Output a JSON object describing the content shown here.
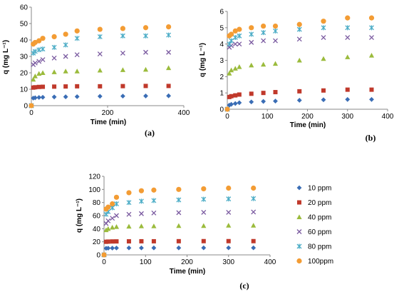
{
  "legend": [
    "10 ppm",
    "20 ppm",
    "40 ppm",
    "60 ppm",
    "80 ppm",
    "100ppm"
  ],
  "colors": [
    "#3a6db5",
    "#c0392b",
    "#9bbb3c",
    "#7a5aa0",
    "#4bacc6",
    "#f39c34"
  ],
  "markers": [
    "diamond",
    "square",
    "triangle",
    "x",
    "asterisk",
    "circle"
  ],
  "chart_data": [
    {
      "type": "scatter",
      "panel_label": "(a)",
      "xlabel": "Time (min)",
      "ylabel": "q (mg L⁻¹)",
      "xlim": [
        0,
        400
      ],
      "ylim": [
        0,
        60
      ],
      "xticks": [
        "0",
        "200",
        "400"
      ],
      "yticks": [
        "0",
        "10",
        "20",
        "30",
        "40",
        "50",
        "60"
      ],
      "x": [
        0,
        5,
        10,
        20,
        30,
        60,
        90,
        120,
        180,
        240,
        300,
        360
      ],
      "series": [
        {
          "name": "10 ppm",
          "values": [
            0,
            4.6,
            4.8,
            5.0,
            5.1,
            5.3,
            5.4,
            5.5,
            5.7,
            5.8,
            5.9,
            6.0
          ]
        },
        {
          "name": "20 ppm",
          "values": [
            0,
            11,
            11.2,
            11.4,
            11.5,
            11.6,
            11.7,
            11.8,
            11.8,
            11.9,
            12.0,
            12.0
          ]
        },
        {
          "name": "40 ppm",
          "values": [
            0,
            16,
            18,
            19.5,
            20,
            20.5,
            21,
            21,
            21.5,
            21.8,
            22,
            23
          ]
        },
        {
          "name": "60 ppm",
          "values": [
            0,
            25,
            26,
            27,
            28,
            29,
            30,
            31,
            31.5,
            32,
            32.5,
            32.5
          ]
        },
        {
          "name": "80 ppm",
          "values": [
            0,
            32,
            33,
            34,
            34.5,
            35.5,
            37,
            41,
            42,
            42.5,
            42.5,
            43
          ]
        },
        {
          "name": "100ppm",
          "values": [
            0,
            37.5,
            38.5,
            39.5,
            41,
            42,
            43.5,
            45.5,
            46.5,
            47,
            47.5,
            48
          ]
        }
      ]
    },
    {
      "type": "scatter",
      "panel_label": "(b)",
      "xlabel": "Time (min)",
      "ylabel": "q (mg L⁻¹)",
      "xlim": [
        0,
        400
      ],
      "ylim": [
        0,
        6
      ],
      "xticks": [
        "0",
        "100",
        "200",
        "300",
        "400"
      ],
      "yticks": [
        "0",
        "1",
        "2",
        "3",
        "4",
        "5",
        "6"
      ],
      "x": [
        0,
        5,
        10,
        20,
        30,
        60,
        90,
        120,
        180,
        240,
        300,
        360
      ],
      "series": [
        {
          "name": "10 ppm",
          "values": [
            0,
            0.25,
            0.3,
            0.35,
            0.4,
            0.45,
            0.48,
            0.5,
            0.55,
            0.58,
            0.6,
            0.6
          ]
        },
        {
          "name": "20 ppm",
          "values": [
            0,
            0.75,
            0.8,
            0.85,
            0.9,
            0.95,
            1.0,
            1.05,
            1.1,
            1.15,
            1.2,
            1.2
          ]
        },
        {
          "name": "40 ppm",
          "values": [
            0,
            2.2,
            2.4,
            2.5,
            2.6,
            2.7,
            2.75,
            2.8,
            3.0,
            3.1,
            3.2,
            3.3
          ]
        },
        {
          "name": "60 ppm",
          "values": [
            0,
            3.8,
            3.9,
            4.0,
            4.0,
            4.1,
            4.2,
            4.2,
            4.3,
            4.4,
            4.4,
            4.4
          ]
        },
        {
          "name": "80 ppm",
          "values": [
            0,
            4.0,
            4.2,
            4.4,
            4.5,
            4.6,
            4.7,
            4.8,
            4.9,
            5.0,
            5.0,
            5.0
          ]
        },
        {
          "name": "100ppm",
          "values": [
            0,
            4.5,
            4.6,
            4.8,
            4.9,
            5.0,
            5.1,
            5.1,
            5.2,
            5.4,
            5.6,
            5.6
          ]
        }
      ]
    },
    {
      "type": "scatter",
      "panel_label": "(c)",
      "xlabel": "Time (min)",
      "ylabel": "q (mg L⁻¹)",
      "xlim": [
        0,
        400
      ],
      "ylim": [
        0,
        120
      ],
      "xticks": [
        "0",
        "100",
        "200",
        "300",
        "400"
      ],
      "yticks": [
        "0",
        "20",
        "40",
        "60",
        "80",
        "100",
        "120"
      ],
      "x": [
        0,
        5,
        10,
        20,
        30,
        60,
        90,
        120,
        180,
        240,
        300,
        360
      ],
      "series": [
        {
          "name": "10 ppm",
          "values": [
            0,
            10,
            10.2,
            10.4,
            10.5,
            10.6,
            10.6,
            10.7,
            10.7,
            10.8,
            10.8,
            10.8
          ]
        },
        {
          "name": "20 ppm",
          "values": [
            0,
            20,
            20.3,
            20.5,
            20.6,
            20.7,
            20.8,
            20.8,
            20.9,
            21,
            21,
            21
          ]
        },
        {
          "name": "40 ppm",
          "values": [
            0,
            38,
            40,
            42,
            43,
            43.5,
            44,
            44,
            44.5,
            44.5,
            45,
            45
          ]
        },
        {
          "name": "60 ppm",
          "values": [
            0,
            48,
            52,
            56,
            60,
            62,
            63,
            64,
            64.5,
            65,
            65,
            65.5
          ]
        },
        {
          "name": "80 ppm",
          "values": [
            0,
            62,
            66,
            72,
            78,
            80,
            82,
            83,
            84,
            85,
            85.5,
            86
          ]
        },
        {
          "name": "100ppm",
          "values": [
            0,
            70,
            73,
            78,
            88,
            95,
            98,
            99,
            100,
            101,
            102,
            102
          ]
        }
      ]
    }
  ]
}
